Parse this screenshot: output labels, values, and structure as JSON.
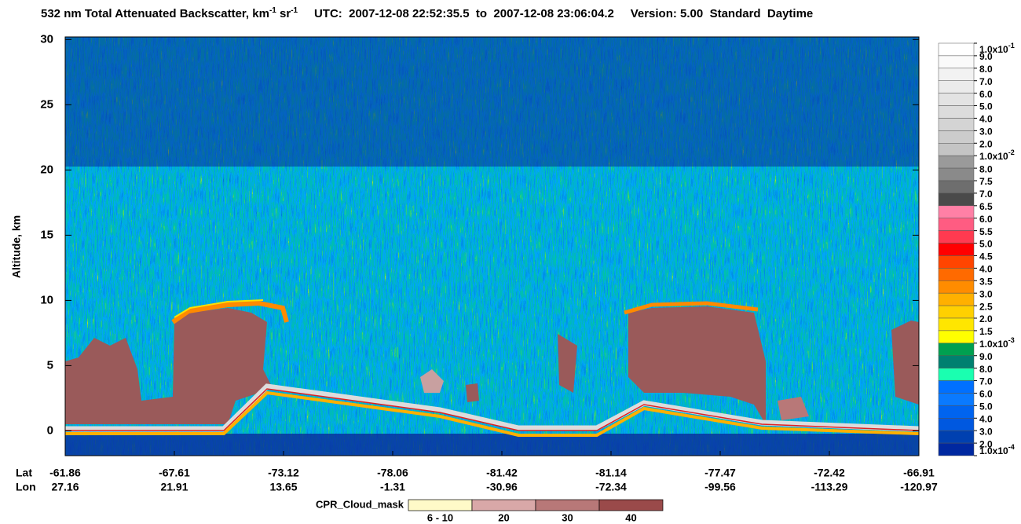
{
  "chart_data": {
    "type": "heatmap",
    "title_parts": [
      "532 nm Total Attenuated Backscatter, km",
      "-1",
      " sr",
      "-1",
      "UTC:  2007-12-08 22:52:35.5  to  2007-12-08 23:06:04.2",
      "Version: 5.00  Standard  Daytime"
    ],
    "ylabel": "Altitude, km",
    "ylim": [
      -1.9,
      30.2
    ],
    "yticks": [
      0,
      5,
      10,
      15,
      20,
      25,
      30
    ],
    "x_row_labels": [
      "Lat",
      "Lon"
    ],
    "x_ticks": [
      {
        "lat": "-61.86",
        "lon": "27.16"
      },
      {
        "lat": "-67.61",
        "lon": "21.91"
      },
      {
        "lat": "-73.12",
        "lon": "13.65"
      },
      {
        "lat": "-78.06",
        "lon": "-1.31"
      },
      {
        "lat": "-81.42",
        "lon": "-30.96"
      },
      {
        "lat": "-81.14",
        "lon": "-72.34"
      },
      {
        "lat": "-77.47",
        "lon": "-99.56"
      },
      {
        "lat": "-72.42",
        "lon": "-113.29"
      },
      {
        "lat": "-66.91",
        "lon": "-120.97"
      }
    ],
    "colorbar": {
      "labels": [
        {
          "text": "1.0x10",
          "exp": "-1"
        },
        "9.0",
        "8.0",
        "7.0",
        "6.0",
        "5.0",
        "4.0",
        "3.0",
        "2.0",
        {
          "text": "1.0x10",
          "exp": "-2"
        },
        "8.0",
        "7.5",
        "7.0",
        "6.5",
        "6.0",
        "5.5",
        "5.0",
        "4.5",
        "4.0",
        "3.5",
        "3.0",
        "2.5",
        "2.0",
        "1.5",
        {
          "text": "1.0x10",
          "exp": "-3"
        },
        "9.0",
        "8.0",
        "7.0",
        "6.0",
        "5.0",
        "4.0",
        "3.0",
        "2.0",
        {
          "text": "1.0x10",
          "exp": "-4"
        }
      ],
      "colors": [
        "#ffffff",
        "#fafafa",
        "#f2f2f2",
        "#ebebeb",
        "#e3e3e3",
        "#dcdcdc",
        "#d4d4d4",
        "#cccccc",
        "#c4c4c4",
        "#9a9a9a",
        "#8a8a8a",
        "#6e6e6e",
        "#4a4a4a",
        "#ff80a6",
        "#ff5c82",
        "#ff3a50",
        "#ff0000",
        "#ff4500",
        "#ff6a00",
        "#ff8c00",
        "#ffb000",
        "#ffd000",
        "#ffe600",
        "#ffff00",
        "#00a050",
        "#008070",
        "#1affb0",
        "#0070ff",
        "#0a7aff",
        "#0064f0",
        "#0058e0",
        "#0040b0",
        "#0028a0"
      ]
    },
    "cloud_mask": {
      "title": "CPR_Cloud_mask",
      "labels": [
        "6 - 10",
        "20",
        "30",
        "40"
      ],
      "colors": [
        "#fffac8",
        "#d9a8a8",
        "#b87878",
        "#9a4a4a"
      ]
    }
  }
}
